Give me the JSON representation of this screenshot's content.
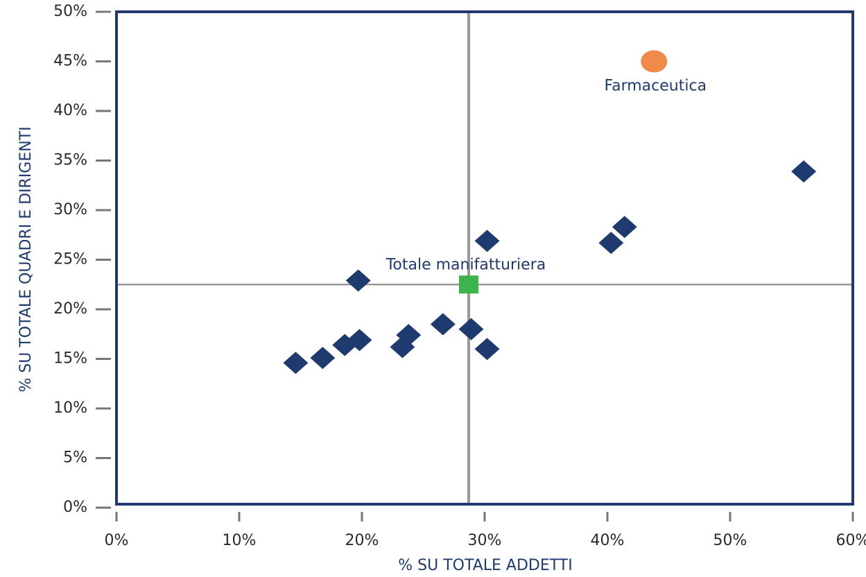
{
  "chart_data": {
    "type": "scatter",
    "x_label": "% SU TOTALE ADDETTI",
    "y_label": "% SU TOTALE QUADRI E DIRIGENTI",
    "xlim": [
      0,
      60
    ],
    "ylim": [
      0,
      50
    ],
    "xticks": [
      {
        "value": 0,
        "label": "0%"
      },
      {
        "value": 10,
        "label": "10%"
      },
      {
        "value": 20,
        "label": "20%"
      },
      {
        "value": 30,
        "label": "30%"
      },
      {
        "value": 40,
        "label": "40%"
      },
      {
        "value": 50,
        "label": "50%"
      },
      {
        "value": 60,
        "label": "60%"
      }
    ],
    "yticks": [
      {
        "value": 0,
        "label": "0%"
      },
      {
        "value": 5,
        "label": "5%"
      },
      {
        "value": 10,
        "label": "10%"
      },
      {
        "value": 15,
        "label": "15%"
      },
      {
        "value": 20,
        "label": "20%"
      },
      {
        "value": 25,
        "label": "25%"
      },
      {
        "value": 30,
        "label": "30%"
      },
      {
        "value": 35,
        "label": "35%"
      },
      {
        "value": 40,
        "label": "40%"
      },
      {
        "value": 45,
        "label": "45%"
      },
      {
        "value": 50,
        "label": "50%"
      }
    ],
    "series": [
      {
        "color": "#1f3a6e",
        "marker": "diamond",
        "x": [
          56.0,
          41.4,
          40.3,
          30.2,
          19.7,
          26.6,
          23.8,
          28.9,
          30.2,
          23.3,
          19.8,
          18.6,
          16.8,
          14.6
        ],
        "values": [
          33.9,
          28.3,
          26.7,
          26.9,
          22.9,
          18.5,
          17.4,
          18.0,
          16.0,
          16.2,
          16.9,
          16.4,
          15.1,
          14.6
        ]
      },
      {
        "name": "Farmaceutica",
        "color": "#f08a4b",
        "marker": "circle",
        "x": [
          43.8
        ],
        "values": [
          45.0
        ]
      },
      {
        "name": "Totale manifatturiera",
        "color": "#3cb44b",
        "marker": "square",
        "x": [
          28.7
        ],
        "values": [
          22.5
        ],
        "reference_lines": true
      }
    ]
  }
}
